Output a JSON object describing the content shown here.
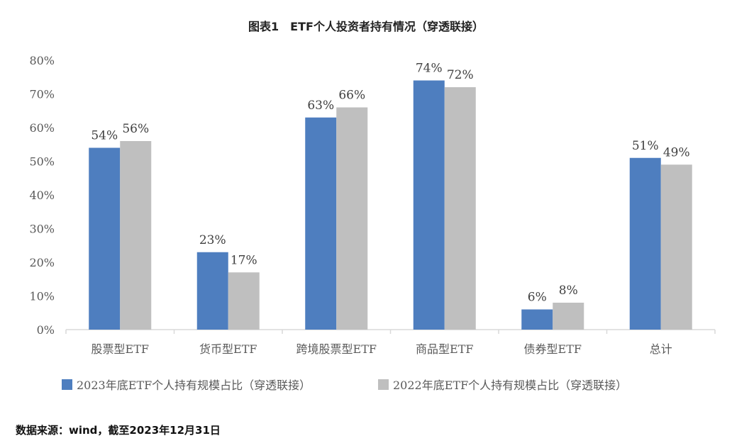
{
  "title": "图表1　ETF个人投资者持有情况（穿透联接）",
  "source": "数据来源：wind，截至2023年12月31日",
  "chart_data": {
    "type": "bar",
    "title": "图表1　ETF个人投资者持有情况（穿透联接）",
    "categories": [
      "股票型ETF",
      "货币型ETF",
      "跨境股票型ETF",
      "商品型ETF",
      "债券型ETF",
      "总计"
    ],
    "series": [
      {
        "name": "2023年底ETF个人持有规模占比（穿透联接）",
        "values": [
          54,
          23,
          63,
          74,
          6,
          51
        ],
        "labels": [
          "54%",
          "23%",
          "63%",
          "74%",
          "6%",
          "51%"
        ],
        "color": "#4e7ebf"
      },
      {
        "name": "2022年底ETF个人持有规模占比（穿透联接）",
        "values": [
          56,
          17,
          66,
          72,
          8,
          49
        ],
        "labels": [
          "56%",
          "17%",
          "66%",
          "72%",
          "8%",
          "49%"
        ],
        "color": "#bfbfbf"
      }
    ],
    "ylim": [
      0,
      80
    ],
    "yticks": [
      "0%",
      "10%",
      "20%",
      "30%",
      "40%",
      "50%",
      "60%",
      "70%",
      "80%"
    ],
    "xlabel": "",
    "ylabel": "",
    "legend": "bottom"
  }
}
